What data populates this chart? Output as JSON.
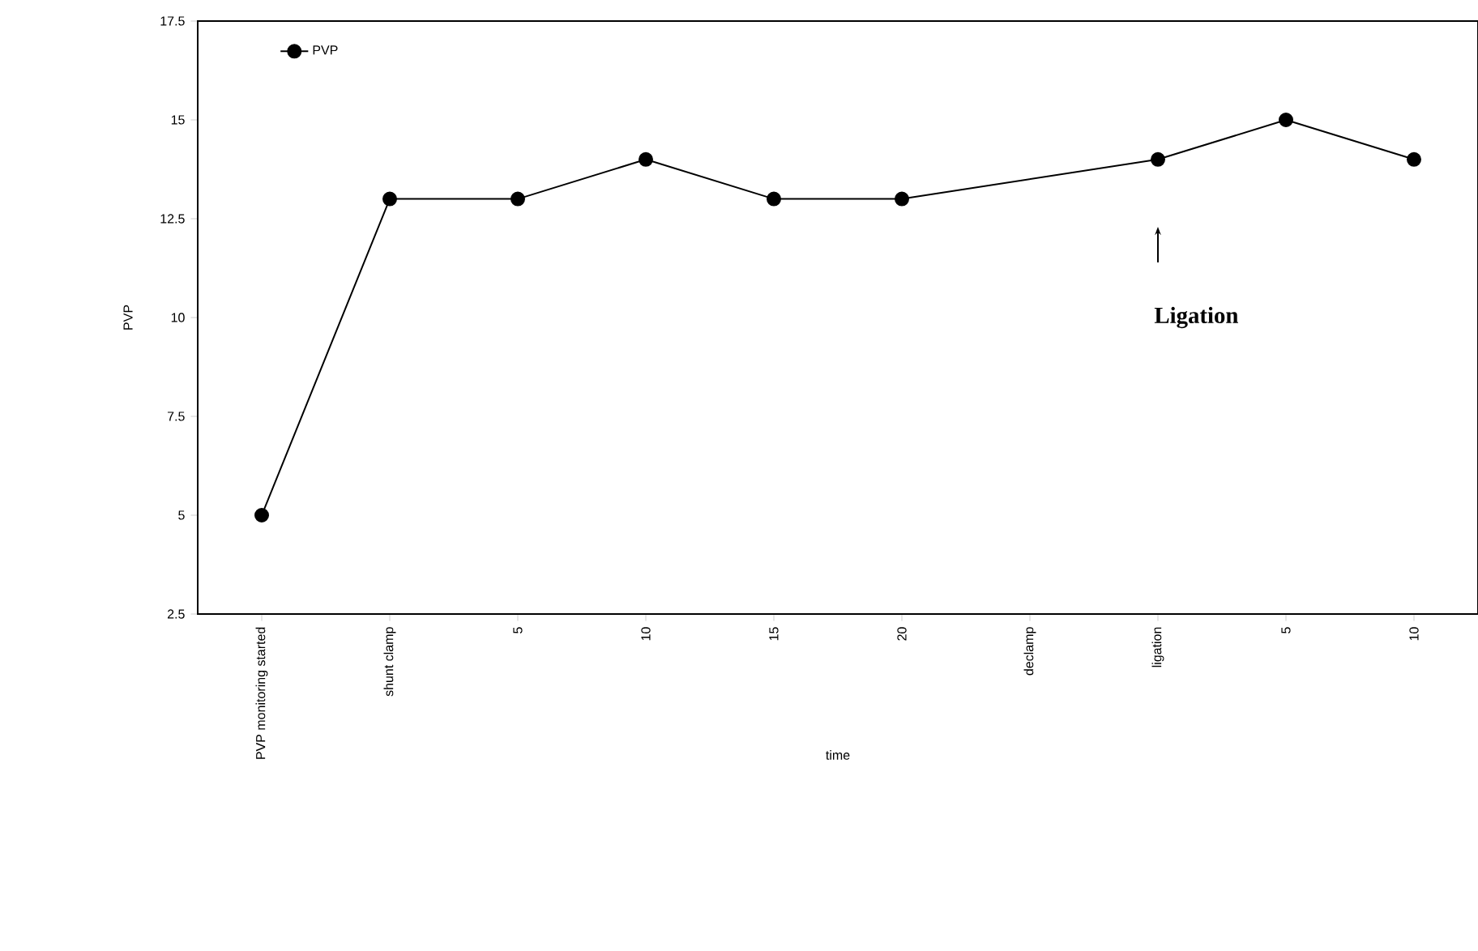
{
  "chart_data": {
    "type": "line",
    "categories": [
      "PVP monitoring started",
      "shunt clamp",
      "5",
      "10",
      "15",
      "20",
      "declamp",
      "ligation",
      "5",
      "10"
    ],
    "series": [
      {
        "name": "PVP",
        "color": "#000000",
        "values": [
          5,
          13,
          13,
          14,
          13,
          13,
          null,
          14,
          15,
          14
        ]
      }
    ],
    "xlabel": "time",
    "ylabel": "PVP",
    "ylim": [
      2.5,
      17.5
    ],
    "yticks": [
      2.5,
      5,
      7.5,
      10,
      12.5,
      15,
      17.5
    ],
    "annotations": [
      "Ligation"
    ],
    "marker": "circle",
    "line_style": "solid",
    "grid": false,
    "legend": "top left"
  }
}
